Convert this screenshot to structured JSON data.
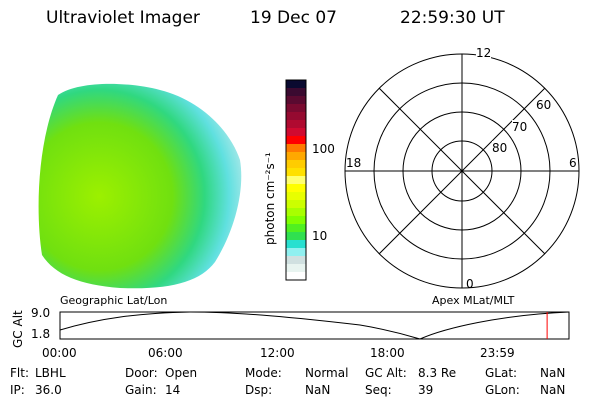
{
  "header": {
    "instrument": "Ultraviolet Imager",
    "date": "19 Dec 07",
    "time": "22:59:30 UT"
  },
  "colorbar": {
    "label": "photon cm⁻²s⁻¹",
    "ticks": [
      "100",
      "10"
    ],
    "colors": [
      "#0a0a30",
      "#3a0a30",
      "#5a0a30",
      "#7a0a30",
      "#950a30",
      "#b00a30",
      "#d00a30",
      "#ff0000",
      "#ff7a00",
      "#ffa800",
      "#ffcc00",
      "#ffe000",
      "#ffff70",
      "#ffff00",
      "#e8ff00",
      "#ccff00",
      "#a8ff00",
      "#80ff00",
      "#50f020",
      "#30e050",
      "#28e0d0",
      "#90f0f0",
      "#d0e0e0",
      "#e8f4f0",
      "#ffffff"
    ]
  },
  "polar": {
    "labels": {
      "top": "12",
      "bottom": "0",
      "left": "18",
      "right": "6"
    },
    "rings": [
      "60",
      "70",
      "80"
    ]
  },
  "orbit": {
    "left_label": "Geographic Lat/Lon",
    "right_label": "Apex MLat/MLT",
    "ylabel": "GC Alt",
    "yticks": [
      "9.0",
      "1.8"
    ],
    "xticks": [
      "00:00",
      "06:00",
      "12:00",
      "18:00",
      "23:59"
    ],
    "marker_color": "#ff0000",
    "marker_time_fraction": 0.957
  },
  "status": [
    [
      {
        "label": "Flt:",
        "value": "LBHL"
      },
      {
        "label": "Door:",
        "value": "Open"
      },
      {
        "label": "Mode:",
        "value": "Normal"
      },
      {
        "label": "GC Alt:",
        "value": "8.3 Re"
      },
      {
        "label": "GLat:",
        "value": "NaN"
      }
    ],
    [
      {
        "label": "IP:",
        "value": "36.0"
      },
      {
        "label": "Gain:",
        "value": "14"
      },
      {
        "label": "Dsp:",
        "value": "NaN"
      },
      {
        "label": "Seq:",
        "value": "39"
      },
      {
        "label": "GLon:",
        "value": "NaN"
      }
    ]
  ]
}
